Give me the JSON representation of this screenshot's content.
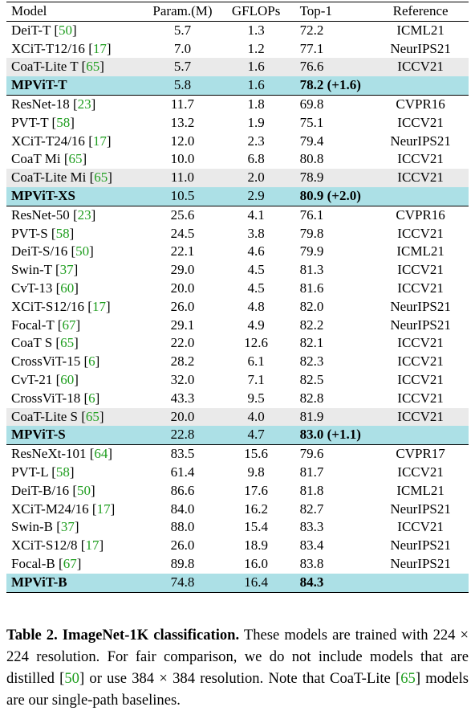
{
  "columns": [
    "Model",
    "Param.(M)",
    "GFLOPs",
    "Top-1",
    "Reference"
  ],
  "rows": [
    {
      "name": "DeiT-T",
      "cite": "50",
      "param": "5.7",
      "flops": "1.3",
      "top1": "72.2",
      "delta": "",
      "ref": "ICML21",
      "kind": "normal"
    },
    {
      "name": "XCiT-T12/16",
      "cite": "17",
      "param": "7.0",
      "flops": "1.2",
      "top1": "77.1",
      "delta": "",
      "ref": "NeurIPS21",
      "kind": "normal"
    },
    {
      "name": "CoaT-Lite T",
      "cite": "65",
      "param": "5.7",
      "flops": "1.6",
      "top1": "76.6",
      "delta": "",
      "ref": "ICCV21",
      "kind": "baseline"
    },
    {
      "name": "MPViT-T",
      "cite": "",
      "param": "5.8",
      "flops": "1.6",
      "top1": "78.2",
      "delta": "(+1.6)",
      "ref": "",
      "kind": "ours"
    },
    {
      "name": "ResNet-18",
      "cite": "23",
      "param": "11.7",
      "flops": "1.8",
      "top1": "69.8",
      "delta": "",
      "ref": "CVPR16",
      "kind": "normal"
    },
    {
      "name": "PVT-T",
      "cite": "58",
      "param": "13.2",
      "flops": "1.9",
      "top1": "75.1",
      "delta": "",
      "ref": "ICCV21",
      "kind": "normal"
    },
    {
      "name": "XCiT-T24/16",
      "cite": "17",
      "param": "12.0",
      "flops": "2.3",
      "top1": "79.4",
      "delta": "",
      "ref": "NeurIPS21",
      "kind": "normal"
    },
    {
      "name": "CoaT Mi",
      "cite": "65",
      "param": "10.0",
      "flops": "6.8",
      "top1": "80.8",
      "delta": "",
      "ref": "ICCV21",
      "kind": "normal"
    },
    {
      "name": "CoaT-Lite Mi",
      "cite": "65",
      "param": "11.0",
      "flops": "2.0",
      "top1": "78.9",
      "delta": "",
      "ref": "ICCV21",
      "kind": "baseline"
    },
    {
      "name": "MPViT-XS",
      "cite": "",
      "param": "10.5",
      "flops": "2.9",
      "top1": "80.9",
      "delta": "(+2.0)",
      "ref": "",
      "kind": "ours"
    },
    {
      "name": "ResNet-50",
      "cite": "23",
      "param": "25.6",
      "flops": "4.1",
      "top1": "76.1",
      "delta": "",
      "ref": "CVPR16",
      "kind": "normal"
    },
    {
      "name": "PVT-S",
      "cite": "58",
      "param": "24.5",
      "flops": "3.8",
      "top1": "79.8",
      "delta": "",
      "ref": "ICCV21",
      "kind": "normal"
    },
    {
      "name": "DeiT-S/16",
      "cite": "50",
      "param": "22.1",
      "flops": "4.6",
      "top1": "79.9",
      "delta": "",
      "ref": "ICML21",
      "kind": "normal"
    },
    {
      "name": "Swin-T",
      "cite": "37",
      "param": "29.0",
      "flops": "4.5",
      "top1": "81.3",
      "delta": "",
      "ref": "ICCV21",
      "kind": "normal"
    },
    {
      "name": "CvT-13",
      "cite": "60",
      "param": "20.0",
      "flops": "4.5",
      "top1": "81.6",
      "delta": "",
      "ref": "ICCV21",
      "kind": "normal"
    },
    {
      "name": "XCiT-S12/16",
      "cite": "17",
      "param": "26.0",
      "flops": "4.8",
      "top1": "82.0",
      "delta": "",
      "ref": "NeurIPS21",
      "kind": "normal"
    },
    {
      "name": "Focal-T",
      "cite": "67",
      "param": "29.1",
      "flops": "4.9",
      "top1": "82.2",
      "delta": "",
      "ref": "NeurIPS21",
      "kind": "normal"
    },
    {
      "name": "CoaT S",
      "cite": "65",
      "param": "22.0",
      "flops": "12.6",
      "top1": "82.1",
      "delta": "",
      "ref": "ICCV21",
      "kind": "normal"
    },
    {
      "name": "CrossViT-15",
      "cite": "6",
      "param": "28.2",
      "flops": "6.1",
      "top1": "82.3",
      "delta": "",
      "ref": "ICCV21",
      "kind": "normal"
    },
    {
      "name": "CvT-21",
      "cite": "60",
      "param": "32.0",
      "flops": "7.1",
      "top1": "82.5",
      "delta": "",
      "ref": "ICCV21",
      "kind": "normal"
    },
    {
      "name": "CrossViT-18",
      "cite": "6",
      "param": "43.3",
      "flops": "9.5",
      "top1": "82.8",
      "delta": "",
      "ref": "ICCV21",
      "kind": "normal"
    },
    {
      "name": "CoaT-Lite S",
      "cite": "65",
      "param": "20.0",
      "flops": "4.0",
      "top1": "81.9",
      "delta": "",
      "ref": "ICCV21",
      "kind": "baseline"
    },
    {
      "name": "MPViT-S",
      "cite": "",
      "param": "22.8",
      "flops": "4.7",
      "top1": "83.0",
      "delta": "(+1.1)",
      "ref": "",
      "kind": "ours"
    },
    {
      "name": "ResNeXt-101",
      "cite": "64",
      "param": "83.5",
      "flops": "15.6",
      "top1": "79.6",
      "delta": "",
      "ref": "CVPR17",
      "kind": "normal"
    },
    {
      "name": "PVT-L",
      "cite": "58",
      "param": "61.4",
      "flops": "9.8",
      "top1": "81.7",
      "delta": "",
      "ref": "ICCV21",
      "kind": "normal"
    },
    {
      "name": "DeiT-B/16",
      "cite": "50",
      "param": "86.6",
      "flops": "17.6",
      "top1": "81.8",
      "delta": "",
      "ref": "ICML21",
      "kind": "normal"
    },
    {
      "name": "XCiT-M24/16",
      "cite": "17",
      "param": "84.0",
      "flops": "16.2",
      "top1": "82.7",
      "delta": "",
      "ref": "NeurIPS21",
      "kind": "normal"
    },
    {
      "name": "Swin-B",
      "cite": "37",
      "param": "88.0",
      "flops": "15.4",
      "top1": "83.3",
      "delta": "",
      "ref": "ICCV21",
      "kind": "normal"
    },
    {
      "name": "XCiT-S12/8",
      "cite": "17",
      "param": "26.0",
      "flops": "18.9",
      "top1": "83.4",
      "delta": "",
      "ref": "NeurIPS21",
      "kind": "normal"
    },
    {
      "name": "Focal-B",
      "cite": "67",
      "param": "89.8",
      "flops": "16.0",
      "top1": "83.8",
      "delta": "",
      "ref": "NeurIPS21",
      "kind": "normal"
    },
    {
      "name": "MPViT-B",
      "cite": "",
      "param": "74.8",
      "flops": "16.4",
      "top1": "84.3",
      "delta": "",
      "ref": "",
      "kind": "ours"
    }
  ],
  "caption": {
    "label": "Table 2.",
    "title": "ImageNet-1K classification.",
    "p1": "These models are trained with 224 × 224 resolution. For fair comparison, we do not include models that are distilled [",
    "cite1": "50",
    "p2": "] or use 384 × 384 resolution. Note that CoaT-Lite [",
    "cite2": "65",
    "p3": "] models are our single-path baselines."
  },
  "colors": {
    "ours_row": "#ace0e6",
    "baseline_row": "#eaeaea",
    "citation": "#1f9e1f"
  }
}
